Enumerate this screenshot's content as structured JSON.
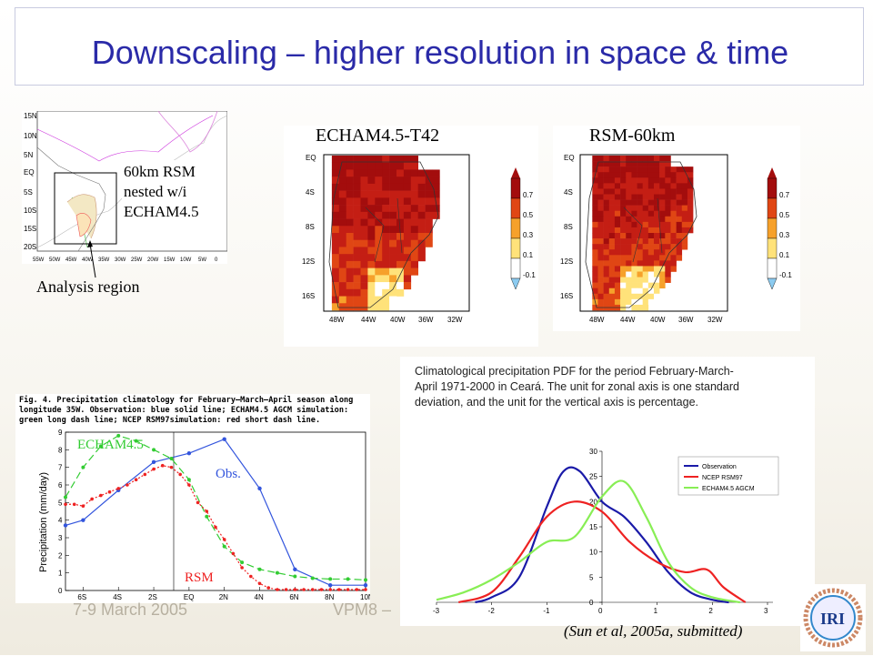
{
  "title": "Downscaling – higher resolution in space & time",
  "domain_map": {
    "label_lines": [
      "60km RSM",
      "nested w/i",
      "ECHAM4.5"
    ],
    "analysis_label": "Analysis region",
    "lat_ticks": [
      "15N",
      "10N",
      "5N",
      "EQ",
      "5S",
      "10S",
      "15S",
      "20S"
    ],
    "lon_ticks": [
      "55W",
      "50W",
      "45W",
      "40W",
      "35W",
      "30W",
      "25W",
      "20W",
      "15W",
      "10W",
      "5W",
      "0"
    ]
  },
  "map_echam": {
    "title": "ECHAM4.5-T42",
    "lat_ticks": [
      "EQ",
      "4S",
      "8S",
      "12S",
      "16S"
    ],
    "lon_ticks": [
      "48W",
      "44W",
      "40W",
      "36W",
      "32W"
    ],
    "legend": [
      "0.7",
      "0.5",
      "0.3",
      "0.1",
      "-0.1"
    ]
  },
  "map_rsm": {
    "title": "RSM-60km",
    "lat_ticks": [
      "EQ",
      "4S",
      "8S",
      "12S",
      "16S"
    ],
    "lon_ticks": [
      "48W",
      "44W",
      "40W",
      "36W",
      "32W"
    ],
    "legend": [
      "0.7",
      "0.5",
      "0.3",
      "0.1",
      "-0.1"
    ]
  },
  "colors": {
    "title": "#2a2aa8",
    "obs": "#3355dd",
    "echam": "#33cc33",
    "rsm": "#ee2222"
  },
  "fig4": {
    "caption_lines": [
      "Fig. 4. Precipitation climatology for February–March–April season along",
      "longitude 35W. Observation: blue solid line; ECHAM4.5 AGCM simulation:",
      "green long dash line; NCEP RSM97simulation: red short dash line."
    ],
    "ylabel": "Precipitation (mm/day)",
    "label_echam": "ECHAM4.5",
    "label_obs": "Obs.",
    "label_rsm": "RSM"
  },
  "pdf": {
    "caption_lines": [
      "Climatological precipitation PDF for the period February-March-",
      "April 1971-2000 in Ceará. The unit for zonal axis is one standard",
      "deviation, and the unit for the vertical axis is percentage."
    ]
  },
  "chart_data": [
    {
      "type": "line",
      "title": "Precipitation climatology for February–March–April season along longitude 35W",
      "xlabel": "",
      "ylabel": "Precipitation (mm/day)",
      "x_ticks": [
        "6S",
        "4S",
        "2S",
        "EQ",
        "2N",
        "4N",
        "6N",
        "8N",
        "10N"
      ],
      "y_ticks": [
        "0",
        "1",
        "2",
        "3",
        "4",
        "5",
        "6",
        "7",
        "8",
        "9"
      ],
      "xlim": [
        -7,
        10
      ],
      "ylim": [
        0,
        9
      ],
      "series": [
        {
          "name": "Obs.",
          "x": [
            -7,
            -6,
            -4,
            -2,
            0,
            2,
            4,
            6,
            8,
            10
          ],
          "values": [
            3.7,
            4.0,
            5.7,
            7.3,
            7.8,
            8.6,
            5.8,
            1.2,
            0.3,
            0.3
          ]
        },
        {
          "name": "ECHAM4.5",
          "x": [
            -7,
            -6,
            -5,
            -4,
            -3,
            -2,
            -1,
            0,
            1,
            2,
            3,
            4,
            5,
            6,
            7,
            8,
            9,
            10
          ],
          "values": [
            5.3,
            7.0,
            8.2,
            8.8,
            8.5,
            8.0,
            7.5,
            6.3,
            4.2,
            2.5,
            1.6,
            1.2,
            1.0,
            0.8,
            0.7,
            0.65,
            0.65,
            0.6
          ]
        },
        {
          "name": "RSM",
          "x": [
            -7,
            -6.5,
            -6,
            -5.5,
            -5,
            -4.5,
            -4,
            -3.5,
            -3,
            -2.5,
            -2,
            -1.5,
            -1,
            -0.5,
            0,
            0.5,
            1,
            1.5,
            2,
            2.5,
            3,
            3.5,
            4,
            4.5,
            5,
            5.5,
            6,
            6.5,
            7,
            7.5,
            8,
            8.5,
            9,
            9.5,
            10
          ],
          "values": [
            4.9,
            4.9,
            4.8,
            5.2,
            5.4,
            5.6,
            5.8,
            6.0,
            6.3,
            6.6,
            6.9,
            7.1,
            7.0,
            6.6,
            6.0,
            5.0,
            4.5,
            3.6,
            2.9,
            2.1,
            1.3,
            0.8,
            0.4,
            0.15,
            0.05,
            0.05,
            0.05,
            0.05,
            0.05,
            0.05,
            0.05,
            0.05,
            0.05,
            0.05,
            0.05
          ]
        }
      ]
    },
    {
      "type": "line",
      "title": "Climatological precipitation PDF for the period February-March-April 1971-2000 in Ceará",
      "xlabel": "",
      "ylabel": "",
      "x_ticks": [
        "-3",
        "-2",
        "-1",
        "0",
        "1",
        "2",
        "3"
      ],
      "y_ticks": [
        "0",
        "5",
        "10",
        "15",
        "20",
        "25",
        "30"
      ],
      "xlim": [
        -3,
        3
      ],
      "ylim": [
        0,
        30
      ],
      "series": [
        {
          "name": "Observation",
          "x": [
            -2.3,
            -2,
            -1.5,
            -1,
            -0.7,
            -0.4,
            0,
            0.4,
            0.8,
            1.2,
            1.6,
            2,
            2.3
          ],
          "values": [
            0,
            1,
            5,
            19,
            26,
            26,
            20,
            17,
            12,
            6,
            2,
            0.5,
            0
          ]
        },
        {
          "name": "NCEP RSM97",
          "x": [
            -2.6,
            -2,
            -1.5,
            -1,
            -0.5,
            0,
            0.5,
            1,
            1.5,
            1.9,
            2.2,
            2.6
          ],
          "values": [
            0,
            2,
            9,
            17,
            20,
            18,
            12,
            8,
            6,
            6.5,
            3,
            0
          ]
        },
        {
          "name": "ECHAM4.5 AGCM",
          "x": [
            -3,
            -2.5,
            -2,
            -1.5,
            -1,
            -0.5,
            0,
            0.4,
            0.8,
            1.2,
            1.6,
            2,
            2.5
          ],
          "values": [
            0.5,
            2,
            4.5,
            8,
            12,
            13,
            21,
            24,
            17,
            8,
            3,
            1,
            0
          ]
        }
      ]
    }
  ],
  "footer": {
    "date": "7-9 March 2005",
    "conf": "VPM8 –",
    "citation": "(Sun et al, 2005a, submitted)",
    "logo_text": "IRI"
  }
}
